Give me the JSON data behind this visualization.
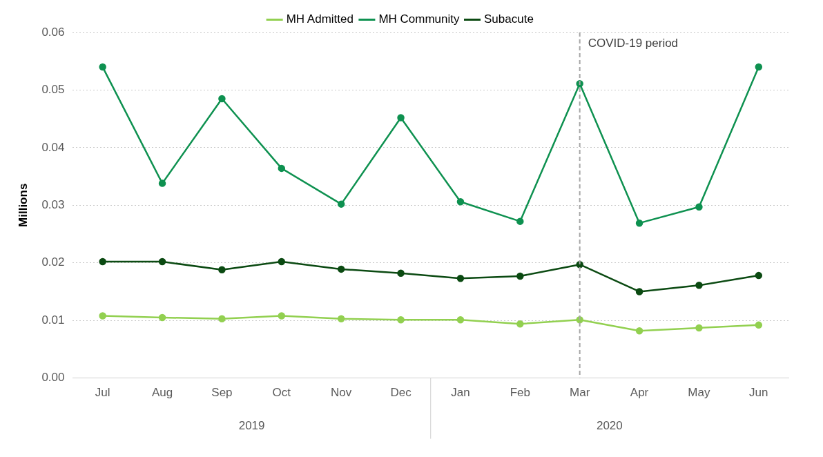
{
  "chart_data": {
    "type": "line",
    "ylabel": "Millions",
    "categories": [
      "Jul",
      "Aug",
      "Sep",
      "Oct",
      "Nov",
      "Dec",
      "Jan",
      "Feb",
      "Mar",
      "Apr",
      "May",
      "Jun"
    ],
    "series": [
      {
        "name": "MH Admitted",
        "color": "#92d050",
        "values": [
          0.0108,
          0.0105,
          0.0103,
          0.0108,
          0.0103,
          0.0101,
          0.0101,
          0.0094,
          0.0101,
          0.0082,
          0.0087,
          0.0092
        ]
      },
      {
        "name": "MH Community",
        "color": "#0e9150",
        "values": [
          0.054,
          0.0338,
          0.0485,
          0.0364,
          0.0302,
          0.0452,
          0.0306,
          0.0272,
          0.0511,
          0.0269,
          0.0297,
          0.054
        ]
      },
      {
        "name": "Subacute",
        "color": "#0b4a12",
        "values": [
          0.0202,
          0.0202,
          0.0188,
          0.0202,
          0.0189,
          0.0182,
          0.0173,
          0.0177,
          0.0197,
          0.015,
          0.0161,
          0.0178
        ]
      }
    ],
    "ylim": [
      0,
      0.06
    ],
    "yticks": [
      {
        "value": 0,
        "label": "0.00"
      },
      {
        "value": 0.01,
        "label": "0.01"
      },
      {
        "value": 0.02,
        "label": "0.02"
      },
      {
        "value": 0.03,
        "label": "0.03"
      },
      {
        "value": 0.04,
        "label": "0.04"
      },
      {
        "value": 0.05,
        "label": "0.05"
      },
      {
        "value": 0.06,
        "label": "0.06"
      }
    ],
    "ref_lines": [
      {
        "axis": "x",
        "value": "Mar",
        "label": "COVID-19 period",
        "color": "#a6a6a6",
        "line_style": "dashed"
      }
    ],
    "annotations": [
      "2019",
      "2020"
    ],
    "grid": "y",
    "legend": "top",
    "marker": "circle",
    "line_style": "solid"
  }
}
